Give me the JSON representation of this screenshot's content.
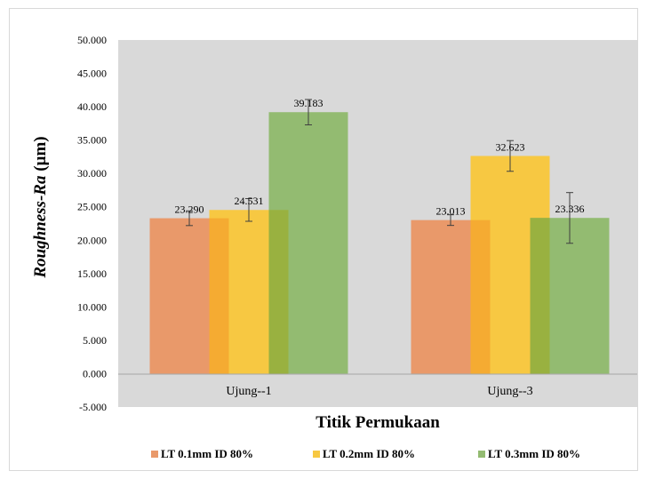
{
  "chart_data": {
    "type": "bar",
    "categories": [
      "Ujung--1",
      "Ujung--3"
    ],
    "series": [
      {
        "name": "LT 0.1mm ID 80%",
        "values": [
          23.29,
          23.013
        ],
        "labels": [
          "23.290",
          "23.013"
        ],
        "errors": [
          1.1,
          0.8
        ],
        "color": "#e9996a",
        "overlap_color": "#f5ab32"
      },
      {
        "name": "LT 0.2mm ID 80%",
        "values": [
          24.531,
          32.623
        ],
        "labels": [
          "24.531",
          "32.623"
        ],
        "errors": [
          1.7,
          2.3
        ],
        "color": "#f7c842",
        "overlap_color": "#99b140"
      },
      {
        "name": "LT 0.3mm ID 80%",
        "values": [
          39.183,
          23.336
        ],
        "labels": [
          "39.183",
          "23.336"
        ],
        "errors": [
          1.9,
          3.8
        ],
        "color": "#93bb71",
        "overlap_color": null
      }
    ],
    "xlabel": "Titik Permukaan",
    "ylabel_main": "Roughness-Ra",
    "ylabel_unit": " (µm)",
    "ylim": [
      -5,
      50
    ],
    "yticks": [
      -5,
      0,
      5,
      10,
      15,
      20,
      25,
      30,
      35,
      40,
      45,
      50
    ],
    "ytick_labels": [
      "-5.000",
      "0.000",
      "5.000",
      "10.000",
      "15.000",
      "20.000",
      "25.000",
      "30.000",
      "35.000",
      "40.000",
      "45.000",
      "50.000"
    ],
    "plot_background": "#d9d9d9",
    "grid": false,
    "legend_position": "bottom"
  }
}
